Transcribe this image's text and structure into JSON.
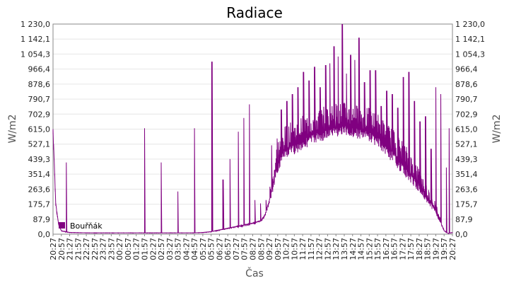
{
  "chart_data": {
    "type": "bar",
    "title": "Radiace",
    "xlabel": "Čas",
    "ylabel": "W/m2",
    "ylabel_right": "W/m2",
    "ylim": [
      0,
      1230
    ],
    "grid": true,
    "legend_position": "bottom-left",
    "y_ticks": [
      "0,0",
      "87,9",
      "175,7",
      "263,6",
      "351,4",
      "439,3",
      "527,1",
      "615,0",
      "702,9",
      "790,7",
      "878,6",
      "966,4",
      "1 054,3",
      "1 142,1",
      "1 230,0"
    ],
    "x_ticks": [
      "20:27",
      "20:57",
      "21:27",
      "21:57",
      "22:27",
      "22:57",
      "23:27",
      "23:57",
      "00:27",
      "00:57",
      "01:27",
      "01:57",
      "02:27",
      "02:57",
      "03:27",
      "03:57",
      "04:27",
      "04:57",
      "05:27",
      "05:57",
      "06:27",
      "06:57",
      "07:27",
      "07:57",
      "08:27",
      "08:57",
      "09:27",
      "09:57",
      "10:27",
      "10:57",
      "11:27",
      "11:57",
      "12:27",
      "12:57",
      "13:27",
      "13:57",
      "14:27",
      "14:57",
      "15:27",
      "15:57",
      "16:27",
      "16:57",
      "17:27",
      "17:57",
      "18:27",
      "18:57",
      "19:27",
      "19:57",
      "20:27"
    ],
    "series": [
      {
        "name": "Bouřňák",
        "color": "#800080",
        "baseline": [
          {
            "t": "20:27",
            "v": 615
          },
          {
            "t": "20:37",
            "v": 180
          },
          {
            "t": "20:47",
            "v": 60
          },
          {
            "t": "20:57",
            "v": 20
          },
          {
            "t": "21:27",
            "v": 10
          },
          {
            "t": "22:27",
            "v": 8
          },
          {
            "t": "02:57",
            "v": 8
          },
          {
            "t": "04:57",
            "v": 8
          },
          {
            "t": "05:27",
            "v": 10
          },
          {
            "t": "05:57",
            "v": 15
          },
          {
            "t": "06:27",
            "v": 25
          },
          {
            "t": "06:57",
            "v": 35
          },
          {
            "t": "07:27",
            "v": 45
          },
          {
            "t": "07:57",
            "v": 55
          },
          {
            "t": "08:27",
            "v": 65
          },
          {
            "t": "08:57",
            "v": 80
          },
          {
            "t": "09:12",
            "v": 120
          },
          {
            "t": "09:27",
            "v": 200
          },
          {
            "t": "09:42",
            "v": 300
          },
          {
            "t": "09:57",
            "v": 420
          },
          {
            "t": "10:12",
            "v": 470
          },
          {
            "t": "10:27",
            "v": 500
          },
          {
            "t": "10:57",
            "v": 525
          },
          {
            "t": "11:27",
            "v": 555
          },
          {
            "t": "11:57",
            "v": 580
          },
          {
            "t": "12:27",
            "v": 600
          },
          {
            "t": "12:57",
            "v": 615
          },
          {
            "t": "13:27",
            "v": 630
          },
          {
            "t": "13:57",
            "v": 635
          },
          {
            "t": "14:27",
            "v": 625
          },
          {
            "t": "14:57",
            "v": 615
          },
          {
            "t": "15:27",
            "v": 600
          },
          {
            "t": "15:57",
            "v": 570
          },
          {
            "t": "16:27",
            "v": 520
          },
          {
            "t": "16:57",
            "v": 470
          },
          {
            "t": "17:27",
            "v": 410
          },
          {
            "t": "17:57",
            "v": 350
          },
          {
            "t": "18:27",
            "v": 290
          },
          {
            "t": "18:57",
            "v": 210
          },
          {
            "t": "19:27",
            "v": 140
          },
          {
            "t": "19:42",
            "v": 80
          },
          {
            "t": "19:57",
            "v": 20
          },
          {
            "t": "20:12",
            "v": 5
          },
          {
            "t": "20:27",
            "v": 10
          }
        ],
        "spikes": [
          {
            "t": "20:27",
            "v": 615
          },
          {
            "t": "21:15",
            "v": 420
          },
          {
            "t": "01:57",
            "v": 620
          },
          {
            "t": "02:57",
            "v": 420
          },
          {
            "t": "03:57",
            "v": 250
          },
          {
            "t": "04:57",
            "v": 620
          },
          {
            "t": "06:00",
            "v": 1010
          },
          {
            "t": "06:40",
            "v": 320
          },
          {
            "t": "07:05",
            "v": 440
          },
          {
            "t": "07:35",
            "v": 600
          },
          {
            "t": "07:55",
            "v": 680
          },
          {
            "t": "08:15",
            "v": 760
          },
          {
            "t": "08:35",
            "v": 200
          },
          {
            "t": "08:55",
            "v": 180
          },
          {
            "t": "09:15",
            "v": 200
          },
          {
            "t": "09:35",
            "v": 520
          },
          {
            "t": "09:55",
            "v": 560
          },
          {
            "t": "10:10",
            "v": 730
          },
          {
            "t": "10:30",
            "v": 780
          },
          {
            "t": "10:50",
            "v": 820
          },
          {
            "t": "11:10",
            "v": 860
          },
          {
            "t": "11:30",
            "v": 950
          },
          {
            "t": "11:50",
            "v": 900
          },
          {
            "t": "12:10",
            "v": 980
          },
          {
            "t": "12:30",
            "v": 860
          },
          {
            "t": "12:50",
            "v": 990
          },
          {
            "t": "13:05",
            "v": 1000
          },
          {
            "t": "13:20",
            "v": 1100
          },
          {
            "t": "13:35",
            "v": 1040
          },
          {
            "t": "13:50",
            "v": 1230
          },
          {
            "t": "14:05",
            "v": 940
          },
          {
            "t": "14:20",
            "v": 1050
          },
          {
            "t": "14:35",
            "v": 1020
          },
          {
            "t": "14:50",
            "v": 1150
          },
          {
            "t": "15:10",
            "v": 890
          },
          {
            "t": "15:30",
            "v": 960
          },
          {
            "t": "15:50",
            "v": 960
          },
          {
            "t": "16:10",
            "v": 750
          },
          {
            "t": "16:30",
            "v": 840
          },
          {
            "t": "16:50",
            "v": 820
          },
          {
            "t": "17:10",
            "v": 740
          },
          {
            "t": "17:30",
            "v": 920
          },
          {
            "t": "17:50",
            "v": 950
          },
          {
            "t": "18:10",
            "v": 780
          },
          {
            "t": "18:30",
            "v": 660
          },
          {
            "t": "18:50",
            "v": 690
          },
          {
            "t": "19:10",
            "v": 500
          },
          {
            "t": "19:27",
            "v": 860
          },
          {
            "t": "19:45",
            "v": 820
          },
          {
            "t": "20:05",
            "v": 390
          },
          {
            "t": "20:15",
            "v": 620
          }
        ]
      }
    ]
  }
}
